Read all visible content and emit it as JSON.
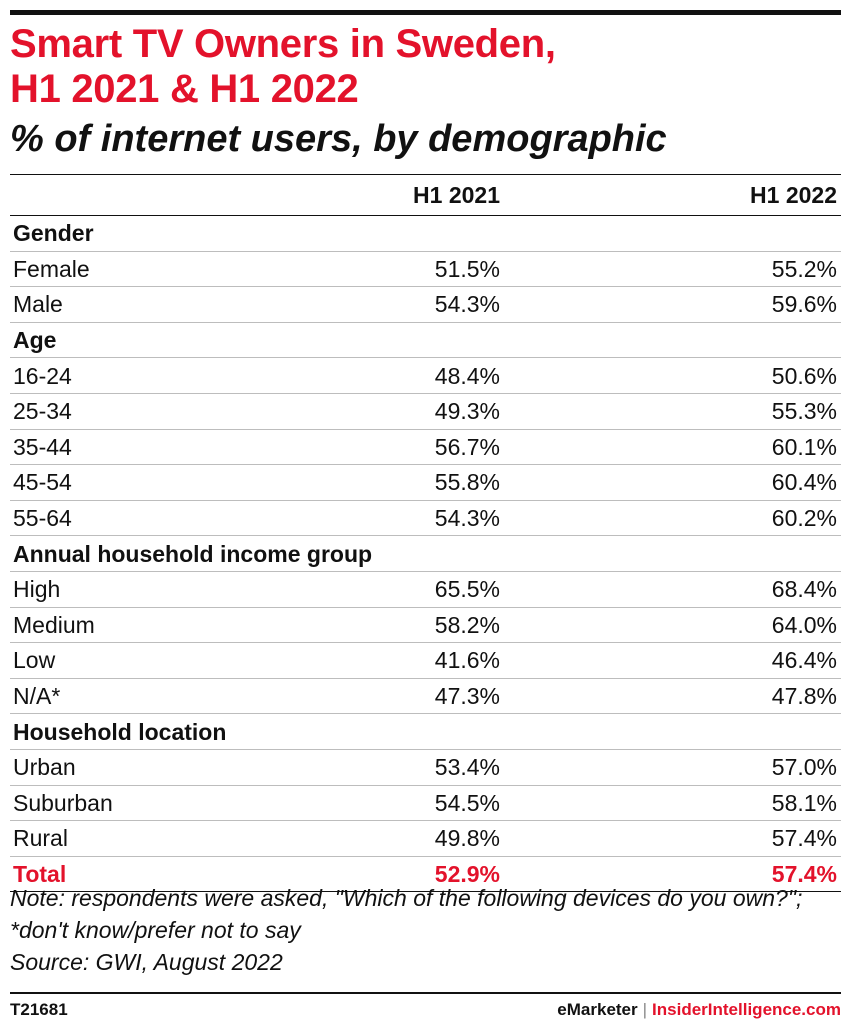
{
  "chart_data": {
    "type": "table",
    "title": "Smart TV Owners in Sweden, H1 2021 & H1 2022",
    "subtitle": "% of internet users, by demographic",
    "columns": [
      "H1 2021",
      "H1 2022"
    ],
    "groups": [
      {
        "label": "Gender",
        "rows": [
          {
            "label": "Female",
            "values": [
              "51.5%",
              "55.2%"
            ]
          },
          {
            "label": "Male",
            "values": [
              "54.3%",
              "59.6%"
            ]
          }
        ]
      },
      {
        "label": "Age",
        "rows": [
          {
            "label": "16-24",
            "values": [
              "48.4%",
              "50.6%"
            ]
          },
          {
            "label": "25-34",
            "values": [
              "49.3%",
              "55.3%"
            ]
          },
          {
            "label": "35-44",
            "values": [
              "56.7%",
              "60.1%"
            ]
          },
          {
            "label": "45-54",
            "values": [
              "55.8%",
              "60.4%"
            ]
          },
          {
            "label": "55-64",
            "values": [
              "54.3%",
              "60.2%"
            ]
          }
        ]
      },
      {
        "label": "Annual household income group",
        "rows": [
          {
            "label": "High",
            "values": [
              "65.5%",
              "68.4%"
            ]
          },
          {
            "label": "Medium",
            "values": [
              "58.2%",
              "64.0%"
            ]
          },
          {
            "label": "Low",
            "values": [
              "41.6%",
              "46.4%"
            ]
          },
          {
            "label": "N/A*",
            "values": [
              "47.3%",
              "47.8%"
            ]
          }
        ]
      },
      {
        "label": "Household location",
        "rows": [
          {
            "label": "Urban",
            "values": [
              "53.4%",
              "57.0%"
            ]
          },
          {
            "label": "Suburban",
            "values": [
              "54.5%",
              "58.1%"
            ]
          },
          {
            "label": "Rural",
            "values": [
              "49.8%",
              "57.4%"
            ]
          }
        ]
      }
    ],
    "total": {
      "label": "Total",
      "values": [
        "52.9%",
        "57.4%"
      ]
    }
  },
  "page": {
    "title_line1": "Smart TV Owners in Sweden,",
    "title_line2": "H1 2021 & H1 2022",
    "subtitle": "% of internet users, by demographic",
    "note": "Note: respondents were asked, \"Which of the following devices do you own?\"; *don't know/prefer not to say",
    "source": "Source: GWI, August 2022",
    "chart_code": "T21681",
    "brand_emarketer": "eMarketer",
    "brand_separator": "|",
    "brand_insider": "InsiderIntelligence.com"
  },
  "colors": {
    "accent": "#e3122b",
    "text": "#111111"
  }
}
